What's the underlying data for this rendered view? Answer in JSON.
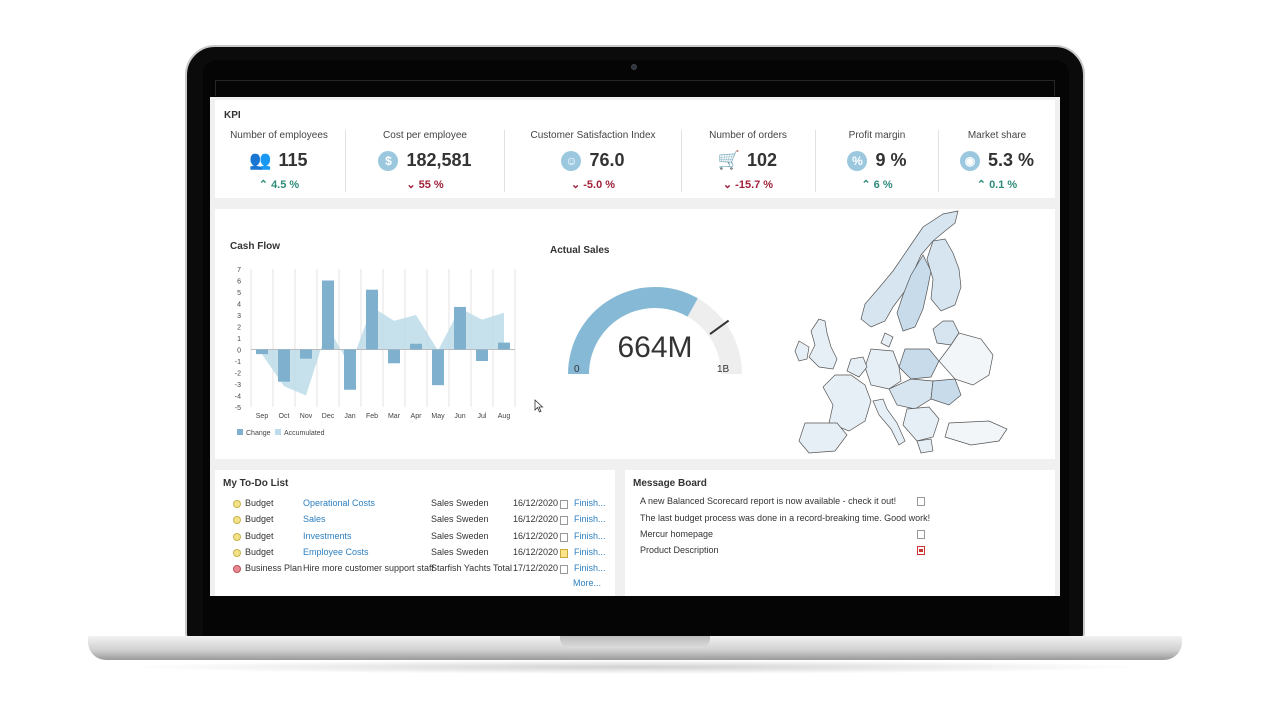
{
  "kpi": {
    "title": "KPI",
    "items": [
      {
        "name": "Number of employees",
        "value": "115",
        "change": "4.5 %",
        "direction": "up",
        "icon": "people-icon"
      },
      {
        "name": "Cost per employee",
        "value": "182,581",
        "change": "55 %",
        "direction": "down",
        "icon": "dollar-icon"
      },
      {
        "name": "Customer Satisfaction Index",
        "value": "76.0",
        "change": "-5.0 %",
        "direction": "down",
        "icon": "smiley-icon"
      },
      {
        "name": "Number of orders",
        "value": "102",
        "change": "-15.7 %",
        "direction": "down",
        "icon": "cart-icon"
      },
      {
        "name": "Profit margin",
        "value": "9 %",
        "change": "6 %",
        "direction": "up",
        "icon": "percent-icon"
      },
      {
        "name": "Market share",
        "value": "5.3 %",
        "change": "0.1 %",
        "direction": "up",
        "icon": "globe-icon"
      }
    ]
  },
  "cashflow": {
    "title": "Cash Flow",
    "legend": [
      "Change",
      "Accumulated"
    ]
  },
  "chart_data": [
    {
      "type": "bar",
      "title": "Cash Flow",
      "categories": [
        "Sep",
        "Oct",
        "Nov",
        "Dec",
        "Jan",
        "Feb",
        "Mar",
        "Apr",
        "May",
        "Jun",
        "Jul",
        "Aug"
      ],
      "yticks": [
        "7",
        "6",
        "5",
        "4",
        "3",
        "2",
        "1",
        "0",
        "-1",
        "-2",
        "-3",
        "-4",
        "-5"
      ],
      "ylim": [
        -5,
        7
      ],
      "series": [
        {
          "name": "Change",
          "values": [
            -0.4,
            -2.8,
            -0.8,
            6.0,
            -3.5,
            5.2,
            -1.2,
            0.5,
            -3.1,
            3.7,
            -1.0,
            0.6
          ]
        },
        {
          "name": "Accumulated",
          "values": [
            -0.4,
            -3.2,
            -4.0,
            2.0,
            -1.5,
            3.7,
            2.5,
            3.0,
            -0.1,
            3.6,
            2.6,
            3.2
          ]
        }
      ],
      "legend_position": "bottom-left"
    },
    {
      "type": "gauge",
      "title": "Actual Sales",
      "value_label": "664M",
      "min_label": "0",
      "max_label": "1B",
      "value": 664,
      "target": 800,
      "max": 1000
    }
  ],
  "sales": {
    "title": "Actual Sales",
    "value": "664M",
    "min": "0",
    "max": "1B"
  },
  "todo": {
    "title": "My To-Do List",
    "rows": [
      {
        "type": "Budget",
        "task": "Operational Costs",
        "org": "Sales Sweden",
        "date": "16/12/2020",
        "action": "Finish...",
        "status": "yellow",
        "link": true
      },
      {
        "type": "Budget",
        "task": "Sales",
        "org": "Sales Sweden",
        "date": "16/12/2020",
        "action": "Finish...",
        "status": "yellow",
        "link": true
      },
      {
        "type": "Budget",
        "task": "Investments",
        "org": "Sales Sweden",
        "date": "16/12/2020",
        "action": "Finish...",
        "status": "yellow",
        "link": true
      },
      {
        "type": "Budget",
        "task": "Employee Costs",
        "org": "Sales Sweden",
        "date": "16/12/2020",
        "action": "Finish...",
        "status": "yellow",
        "link": true
      },
      {
        "type": "Business Plan",
        "task": "Hire more customer support staff",
        "org": "Starfish Yachts Total",
        "date": "17/12/2020",
        "action": "Finish...",
        "status": "red",
        "link": false
      }
    ],
    "more": "More..."
  },
  "messages": {
    "title": "Message Board",
    "items": [
      {
        "text": "A new Balanced Scorecard report is now available - check it out!",
        "link": true,
        "icon": "note-icon"
      },
      {
        "text": "The last budget process was done in a record-breaking time. Good work!",
        "link": false,
        "icon": ""
      },
      {
        "text": "Mercur homepage",
        "link": true,
        "icon": "document-icon"
      },
      {
        "text": "Product Description",
        "link": true,
        "icon": "pdf-icon"
      }
    ]
  }
}
